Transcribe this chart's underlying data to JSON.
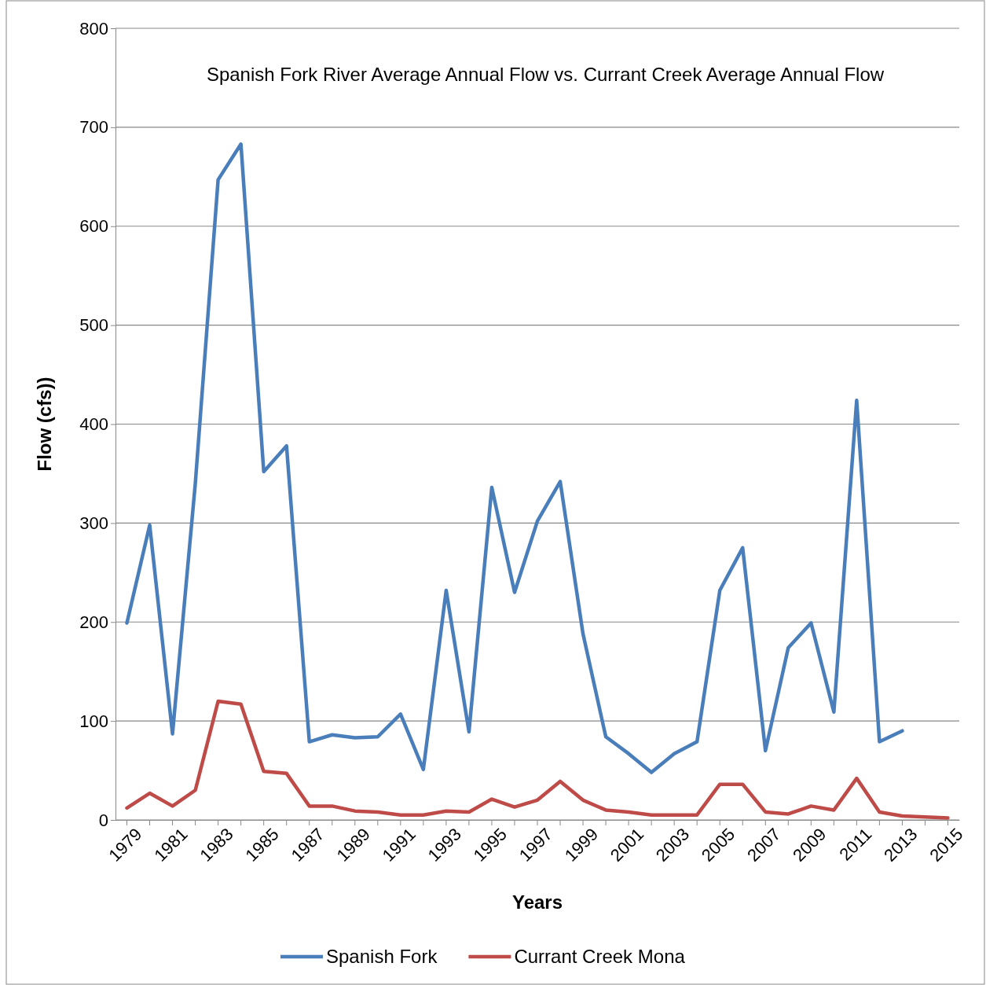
{
  "chart_data": {
    "type": "line",
    "title": "Spanish Fork River Average Annual Flow vs. Currant Creek Average Annual Flow",
    "xlabel": "Years",
    "ylabel": "Flow (cfs))",
    "categories": [
      "1979",
      null,
      "1981",
      null,
      "1983",
      null,
      "1985",
      null,
      "1987",
      null,
      "1989",
      null,
      "1991",
      null,
      "1993",
      null,
      "1995",
      null,
      "1997",
      null,
      "1999",
      null,
      "2001",
      null,
      "2003",
      null,
      "2005",
      null,
      "2007",
      null,
      "2009",
      null,
      "2011",
      null,
      "2013",
      null,
      "2015"
    ],
    "series": [
      {
        "name": "Spanish Fork",
        "color": "#4a7ebb",
        "values": [
          199,
          298,
          87,
          340,
          647,
          683,
          352,
          378,
          79,
          86,
          83,
          84,
          107,
          51,
          232,
          89,
          336,
          230,
          302,
          342,
          188,
          84,
          67,
          48,
          67,
          79,
          232,
          275,
          70,
          174,
          199,
          109,
          424,
          79,
          90,
          null,
          null
        ]
      },
      {
        "name": "Currant Creek Mona",
        "color": "#be4b48",
        "values": [
          12,
          27,
          14,
          30,
          120,
          117,
          49,
          47,
          14,
          14,
          9,
          8,
          5,
          5,
          9,
          8,
          21,
          13,
          20,
          39,
          20,
          10,
          8,
          5,
          5,
          5,
          36,
          36,
          8,
          6,
          14,
          10,
          42,
          8,
          4,
          3,
          2
        ]
      }
    ],
    "ylim": [
      0,
      800
    ],
    "yticks": [
      0,
      100,
      200,
      300,
      400,
      500,
      600,
      700,
      800
    ],
    "grid": "y",
    "legend": "bottom",
    "line_style": "solid",
    "marker": "none"
  }
}
